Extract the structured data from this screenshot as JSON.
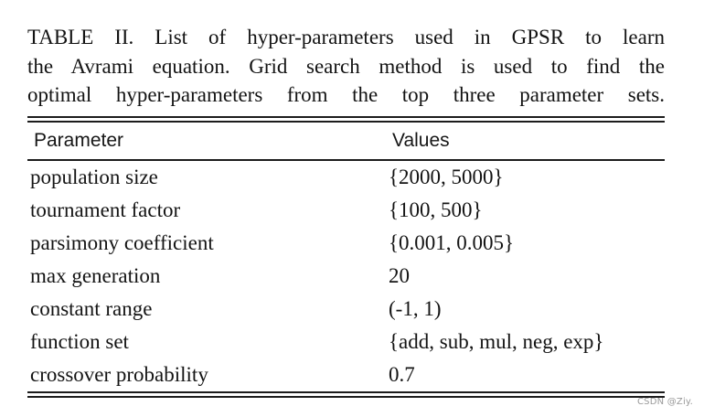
{
  "caption": {
    "lines": [
      "TABLE II. List of hyper-parameters used in GPSR to learn",
      "the Avrami equation. Grid search method is used to find the",
      "optimal hyper-parameters from the top three parameter sets."
    ]
  },
  "table": {
    "headers": [
      "Parameter",
      "Values"
    ],
    "rows": [
      {
        "parameter": "population size",
        "value": "{2000, 5000}"
      },
      {
        "parameter": "tournament factor",
        "value": "{100, 500}"
      },
      {
        "parameter": "parsimony coefficient",
        "value": "{0.001, 0.005}"
      },
      {
        "parameter": "max generation",
        "value": "20"
      },
      {
        "parameter": "constant range",
        "value": "(-1, 1)"
      },
      {
        "parameter": "function set",
        "value": "{add, sub, mul, neg, exp}"
      },
      {
        "parameter": "crossover probability",
        "value": "0.7"
      }
    ]
  },
  "watermark": {
    "text": "CSDN @Ziy.",
    "color": "#9a9a9a"
  },
  "colors": {
    "background": "#ffffff",
    "text": "#141414",
    "rule": "#1c1c1c"
  }
}
